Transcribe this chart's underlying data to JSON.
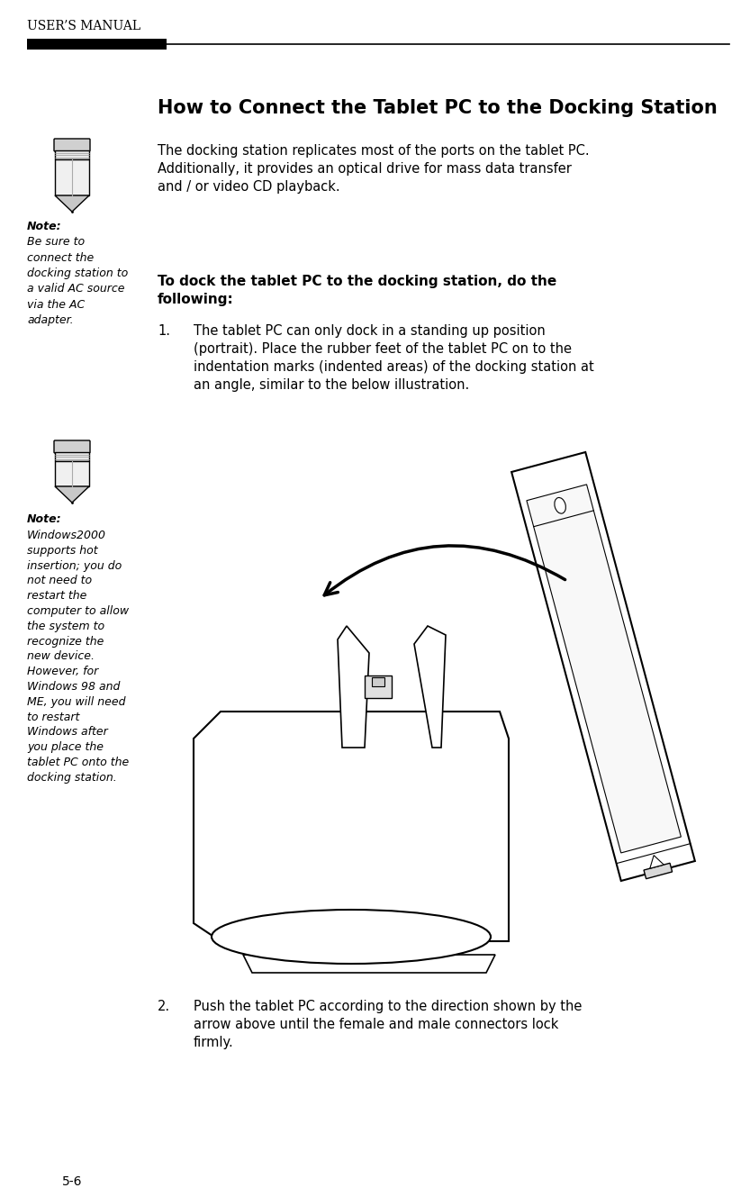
{
  "page_width": 8.33,
  "page_height": 13.29,
  "bg_color": "#ffffff",
  "header_text": "USER’S MANUAL",
  "title": "How to Connect the Tablet PC to the Docking Station",
  "note1_label": "Note:",
  "note1_text": "Be sure to\nconnect the\ndocking station to\na valid AC source\nvia the AC\nadapter.",
  "para1_line1": "The docking station replicates most of the ports on the tablet PC.",
  "para1_line2": "Additionally, it provides an optical drive for mass data transfer",
  "para1_line3": "and / or video CD playback.",
  "para2_line1": "To dock the tablet PC to the docking station, do the",
  "para2_line2": "following:",
  "step1_num": "1.",
  "step1_line1": "The tablet PC can only dock in a standing up position",
  "step1_line2": "(portrait). Place the rubber feet of the tablet PC on to the",
  "step1_line3": "indentation marks (indented areas) of the docking station at",
  "step1_line4": "an angle, similar to the below illustration.",
  "note2_label": "Note:",
  "note2_text": "Windows2000\nsupports hot\ninsertion; you do\nnot need to\nrestart the\ncomputer to allow\nthe system to\nrecognize the\nnew device.\nHowever, for\nWindows 98 and\nME, you will need\nto restart\nWindows after\nyou place the\ntablet PC onto the\ndocking station.",
  "step2_num": "2.",
  "step2_line1": "Push the tablet PC according to the direction shown by the",
  "step2_line2": "arrow above until the female and male connectors lock",
  "step2_line3": "firmly.",
  "page_num": "5-6",
  "text_color": "#000000"
}
